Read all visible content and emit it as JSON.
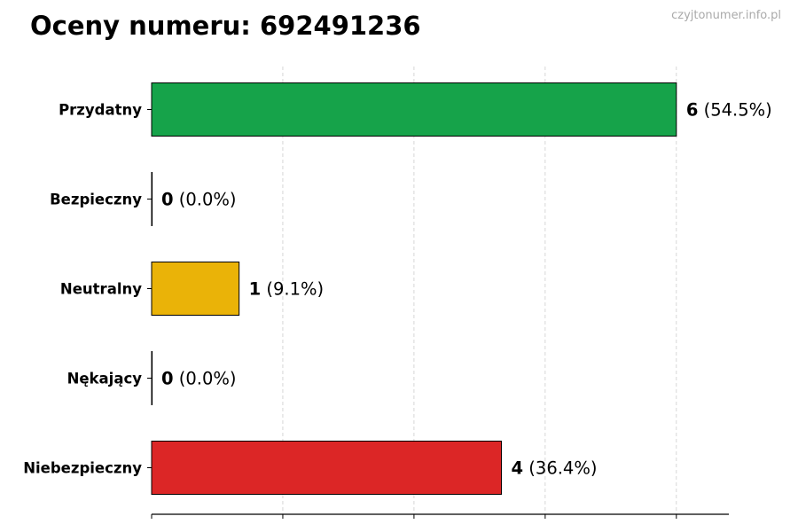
{
  "title": "Oceny numeru: 692491236",
  "watermark": "czyjtonumer.info.pl",
  "chart_data": {
    "type": "bar",
    "orientation": "horizontal",
    "title": "Oceny numeru: 692491236",
    "categories": [
      "Przydatny",
      "Bezpieczny",
      "Neutralny",
      "Nękający",
      "Niebezpieczny"
    ],
    "values": [
      6,
      0,
      1,
      0,
      4
    ],
    "percent_labels": [
      "(54.5%)",
      "(0.0%)",
      "(9.1%)",
      "(0.0%)",
      "(36.4%)"
    ],
    "colors": [
      "#16a34a",
      "#16a34a",
      "#eab308",
      "#dc2626",
      "#dc2626"
    ],
    "xlim": [
      0,
      6.6
    ],
    "xticks": [
      0,
      1.5,
      3,
      4.5,
      6
    ],
    "xtick_labels_shown": false,
    "grid": "vertical dashed",
    "xlabel": "",
    "ylabel": ""
  }
}
